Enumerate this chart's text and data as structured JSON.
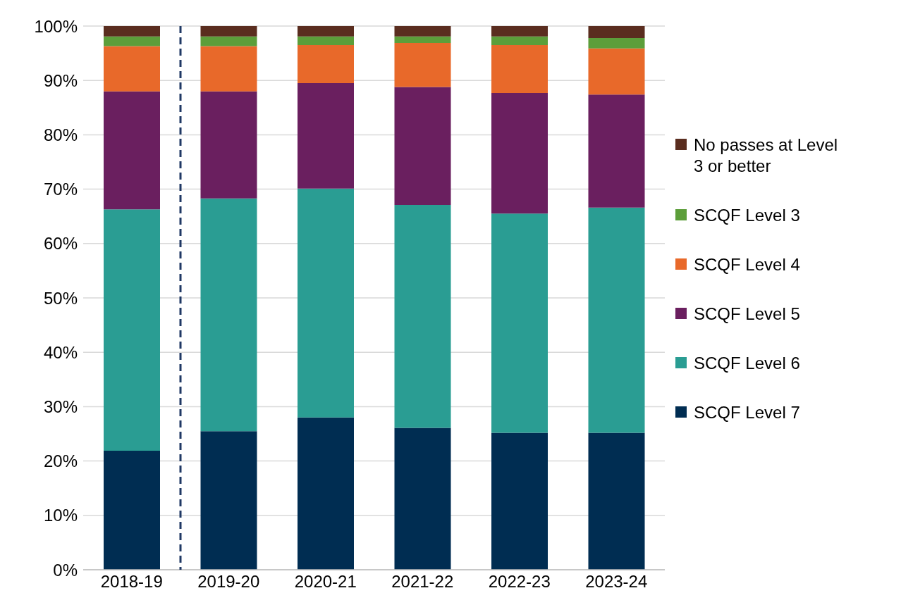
{
  "chart_data": {
    "type": "bar",
    "stacked": true,
    "categories": [
      "2018-19",
      "2019-20",
      "2020-21",
      "2021-22",
      "2022-23",
      "2023-24"
    ],
    "series": [
      {
        "name": "SCQF Level 7",
        "color": "#002d52",
        "values": [
          21.9,
          25.5,
          28.0,
          26.1,
          25.2,
          25.2
        ]
      },
      {
        "name": "SCQF Level 6",
        "color": "#2a9d93",
        "values": [
          44.4,
          42.8,
          42.1,
          41.0,
          40.3,
          41.4
        ]
      },
      {
        "name": "SCQF Level 5",
        "color": "#6a1f5f",
        "values": [
          21.7,
          19.7,
          19.4,
          21.7,
          22.2,
          20.8
        ]
      },
      {
        "name": "SCQF Level 4",
        "color": "#e8692a",
        "values": [
          8.3,
          8.3,
          7.0,
          8.1,
          8.8,
          8.5
        ]
      },
      {
        "name": "SCQF Level 3",
        "color": "#5c9e3a",
        "values": [
          1.8,
          1.8,
          1.6,
          1.2,
          1.6,
          1.9
        ]
      },
      {
        "name": "No passes at Level 3 or better",
        "color": "#5a2d1f",
        "values": [
          1.9,
          1.9,
          1.9,
          1.9,
          1.9,
          2.2
        ]
      }
    ],
    "ylim": [
      0,
      100
    ],
    "yticks": [
      {
        "value": 0,
        "label": "0%"
      },
      {
        "value": 10,
        "label": "10%"
      },
      {
        "value": 20,
        "label": "20%"
      },
      {
        "value": 30,
        "label": "30%"
      },
      {
        "value": 40,
        "label": "40%"
      },
      {
        "value": 50,
        "label": "50%"
      },
      {
        "value": 60,
        "label": "60%"
      },
      {
        "value": 70,
        "label": "70%"
      },
      {
        "value": 80,
        "label": "80%"
      },
      {
        "value": 90,
        "label": "90%"
      },
      {
        "value": 100,
        "label": "100%"
      }
    ],
    "grid": "y",
    "legend": "right"
  }
}
